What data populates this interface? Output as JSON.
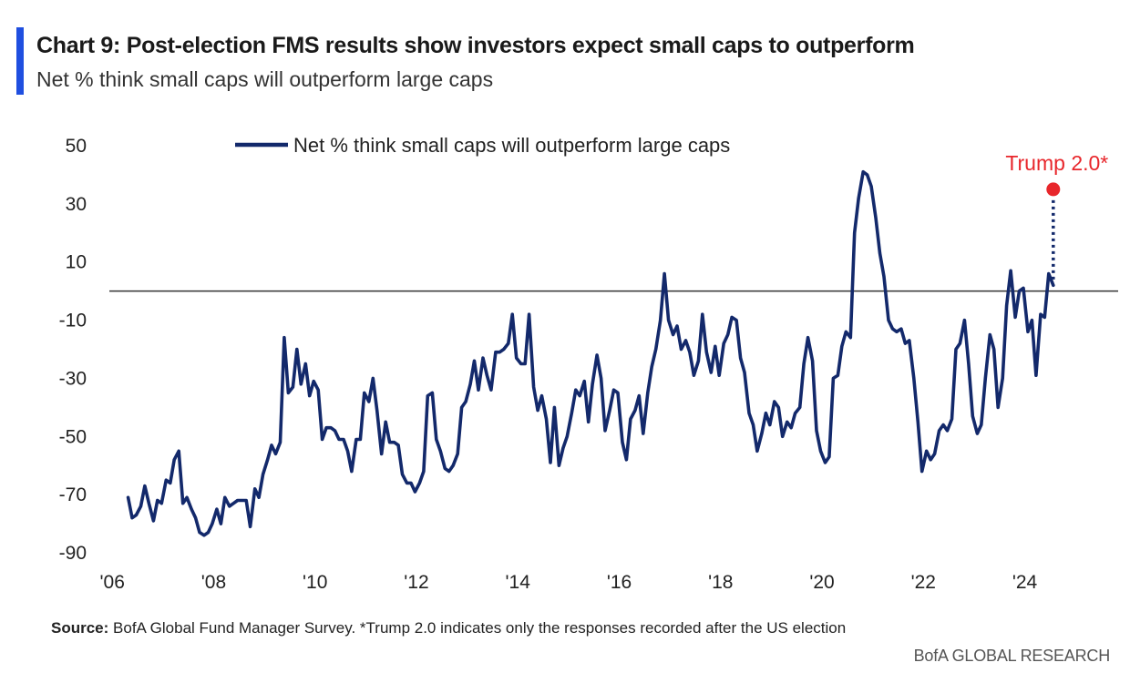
{
  "header": {
    "title": "Chart 9: Post-election FMS results show investors expect small caps to outperform",
    "subtitle": "Net % think small caps will outperform large caps"
  },
  "footer": {
    "source_label": "Source:",
    "source_text": "BofA Global Fund Manager Survey. *Trump 2.0 indicates only the responses recorded after the US election",
    "branding": "BofA GLOBAL RESEARCH"
  },
  "colors": {
    "accent": "#1f4fe0",
    "series": "#13296b",
    "annotation": "#e8262b",
    "zero_line": "#333333"
  },
  "chart_data": {
    "type": "line",
    "title": "Chart 9: Post-election FMS results show investors expect small caps to outperform",
    "subtitle": "Net % think small caps will outperform large caps",
    "xlabel": "",
    "ylabel": "",
    "xlim": [
      2006.0,
      2026.0
    ],
    "ylim": [
      -90,
      50
    ],
    "y_ticks": [
      50,
      30,
      10,
      -10,
      -30,
      -50,
      -70,
      -90
    ],
    "x_ticks": [
      2006,
      2008,
      2010,
      2012,
      2014,
      2016,
      2018,
      2020,
      2022,
      2024
    ],
    "x_tick_labels": [
      "'06",
      "'08",
      "'10",
      "'12",
      "'14",
      "'16",
      "'18",
      "'20",
      "'22",
      "'24"
    ],
    "zero_line": 0,
    "legend": {
      "position": "top-center",
      "label": "Net % think small caps will outperform large caps"
    },
    "series": [
      {
        "name": "Net % think small caps will outperform large caps",
        "points": [
          [
            2006.42,
            -71
          ],
          [
            2006.5,
            -78
          ],
          [
            2006.58,
            -77
          ],
          [
            2006.67,
            -74
          ],
          [
            2006.75,
            -67
          ],
          [
            2006.83,
            -73
          ],
          [
            2006.92,
            -79
          ],
          [
            2007.0,
            -72
          ],
          [
            2007.08,
            -73
          ],
          [
            2007.17,
            -65
          ],
          [
            2007.25,
            -66
          ],
          [
            2007.33,
            -58
          ],
          [
            2007.42,
            -55
          ],
          [
            2007.5,
            -73
          ],
          [
            2007.58,
            -71
          ],
          [
            2007.67,
            -75
          ],
          [
            2007.75,
            -78
          ],
          [
            2007.83,
            -83
          ],
          [
            2007.92,
            -84
          ],
          [
            2008.0,
            -83
          ],
          [
            2008.08,
            -80
          ],
          [
            2008.17,
            -75
          ],
          [
            2008.25,
            -80
          ],
          [
            2008.33,
            -71
          ],
          [
            2008.42,
            -74
          ],
          [
            2008.5,
            -73
          ],
          [
            2008.58,
            -72
          ],
          [
            2008.67,
            -72
          ],
          [
            2008.75,
            -72
          ],
          [
            2008.83,
            -81
          ],
          [
            2008.92,
            -68
          ],
          [
            2009.0,
            -71
          ],
          [
            2009.08,
            -63
          ],
          [
            2009.17,
            -58
          ],
          [
            2009.25,
            -53
          ],
          [
            2009.33,
            -56
          ],
          [
            2009.42,
            -52
          ],
          [
            2009.5,
            -16
          ],
          [
            2009.58,
            -35
          ],
          [
            2009.67,
            -33
          ],
          [
            2009.75,
            -20
          ],
          [
            2009.83,
            -32
          ],
          [
            2009.92,
            -25
          ],
          [
            2010.0,
            -36
          ],
          [
            2010.08,
            -31
          ],
          [
            2010.17,
            -34
          ],
          [
            2010.25,
            -51
          ],
          [
            2010.33,
            -47
          ],
          [
            2010.42,
            -47
          ],
          [
            2010.5,
            -48
          ],
          [
            2010.58,
            -51
          ],
          [
            2010.67,
            -51
          ],
          [
            2010.75,
            -55
          ],
          [
            2010.83,
            -62
          ],
          [
            2010.92,
            -51
          ],
          [
            2011.0,
            -51
          ],
          [
            2011.08,
            -35
          ],
          [
            2011.17,
            -38
          ],
          [
            2011.25,
            -30
          ],
          [
            2011.33,
            -41
          ],
          [
            2011.42,
            -56
          ],
          [
            2011.5,
            -45
          ],
          [
            2011.58,
            -52
          ],
          [
            2011.67,
            -52
          ],
          [
            2011.75,
            -53
          ],
          [
            2011.83,
            -63
          ],
          [
            2011.92,
            -66
          ],
          [
            2012.0,
            -66
          ],
          [
            2012.08,
            -69
          ],
          [
            2012.17,
            -66
          ],
          [
            2012.25,
            -62
          ],
          [
            2012.33,
            -36
          ],
          [
            2012.42,
            -35
          ],
          [
            2012.5,
            -51
          ],
          [
            2012.58,
            -55
          ],
          [
            2012.67,
            -61
          ],
          [
            2012.75,
            -62
          ],
          [
            2012.83,
            -60
          ],
          [
            2012.92,
            -56
          ],
          [
            2013.0,
            -40
          ],
          [
            2013.08,
            -38
          ],
          [
            2013.17,
            -32
          ],
          [
            2013.25,
            -24
          ],
          [
            2013.33,
            -34
          ],
          [
            2013.42,
            -23
          ],
          [
            2013.5,
            -29
          ],
          [
            2013.58,
            -34
          ],
          [
            2013.67,
            -21
          ],
          [
            2013.75,
            -21
          ],
          [
            2013.83,
            -20
          ],
          [
            2013.92,
            -18
          ],
          [
            2014.0,
            -8
          ],
          [
            2014.08,
            -23
          ],
          [
            2014.17,
            -25
          ],
          [
            2014.25,
            -25
          ],
          [
            2014.33,
            -8
          ],
          [
            2014.42,
            -33
          ],
          [
            2014.5,
            -41
          ],
          [
            2014.58,
            -36
          ],
          [
            2014.67,
            -44
          ],
          [
            2014.75,
            -59
          ],
          [
            2014.83,
            -40
          ],
          [
            2014.92,
            -60
          ],
          [
            2015.0,
            -54
          ],
          [
            2015.08,
            -50
          ],
          [
            2015.17,
            -42
          ],
          [
            2015.25,
            -34
          ],
          [
            2015.33,
            -36
          ],
          [
            2015.42,
            -31
          ],
          [
            2015.5,
            -45
          ],
          [
            2015.58,
            -32
          ],
          [
            2015.67,
            -22
          ],
          [
            2015.75,
            -30
          ],
          [
            2015.83,
            -48
          ],
          [
            2015.92,
            -41
          ],
          [
            2016.0,
            -34
          ],
          [
            2016.08,
            -35
          ],
          [
            2016.17,
            -52
          ],
          [
            2016.25,
            -58
          ],
          [
            2016.33,
            -44
          ],
          [
            2016.42,
            -41
          ],
          [
            2016.5,
            -36
          ],
          [
            2016.58,
            -49
          ],
          [
            2016.67,
            -35
          ],
          [
            2016.75,
            -26
          ],
          [
            2016.83,
            -20
          ],
          [
            2016.92,
            -10
          ],
          [
            2017.0,
            6
          ],
          [
            2017.08,
            -10
          ],
          [
            2017.17,
            -15
          ],
          [
            2017.25,
            -12
          ],
          [
            2017.33,
            -20
          ],
          [
            2017.42,
            -17
          ],
          [
            2017.5,
            -21
          ],
          [
            2017.58,
            -29
          ],
          [
            2017.67,
            -24
          ],
          [
            2017.75,
            -8
          ],
          [
            2017.83,
            -21
          ],
          [
            2017.92,
            -28
          ],
          [
            2018.0,
            -19
          ],
          [
            2018.08,
            -29
          ],
          [
            2018.17,
            -18
          ],
          [
            2018.25,
            -15
          ],
          [
            2018.33,
            -9
          ],
          [
            2018.42,
            -10
          ],
          [
            2018.5,
            -23
          ],
          [
            2018.58,
            -28
          ],
          [
            2018.67,
            -42
          ],
          [
            2018.75,
            -46
          ],
          [
            2018.83,
            -55
          ],
          [
            2018.92,
            -49
          ],
          [
            2019.0,
            -42
          ],
          [
            2019.08,
            -46
          ],
          [
            2019.17,
            -38
          ],
          [
            2019.25,
            -40
          ],
          [
            2019.33,
            -50
          ],
          [
            2019.42,
            -45
          ],
          [
            2019.5,
            -47
          ],
          [
            2019.58,
            -42
          ],
          [
            2019.67,
            -40
          ],
          [
            2019.75,
            -25
          ],
          [
            2019.83,
            -16
          ],
          [
            2019.92,
            -24
          ],
          [
            2020.0,
            -48
          ],
          [
            2020.08,
            -55
          ],
          [
            2020.17,
            -59
          ],
          [
            2020.25,
            -57
          ],
          [
            2020.33,
            -30
          ],
          [
            2020.42,
            -29
          ],
          [
            2020.5,
            -19
          ],
          [
            2020.58,
            -14
          ],
          [
            2020.67,
            -16
          ],
          [
            2020.75,
            20
          ],
          [
            2020.83,
            32
          ],
          [
            2020.92,
            41
          ],
          [
            2021.0,
            40
          ],
          [
            2021.08,
            36
          ],
          [
            2021.17,
            25
          ],
          [
            2021.25,
            13
          ],
          [
            2021.33,
            5
          ],
          [
            2021.42,
            -10
          ],
          [
            2021.5,
            -13
          ],
          [
            2021.58,
            -14
          ],
          [
            2021.67,
            -13
          ],
          [
            2021.75,
            -18
          ],
          [
            2021.83,
            -17
          ],
          [
            2021.92,
            -30
          ],
          [
            2022.0,
            -45
          ],
          [
            2022.08,
            -62
          ],
          [
            2022.17,
            -55
          ],
          [
            2022.25,
            -58
          ],
          [
            2022.33,
            -56
          ],
          [
            2022.42,
            -48
          ],
          [
            2022.5,
            -46
          ],
          [
            2022.58,
            -48
          ],
          [
            2022.67,
            -44
          ],
          [
            2022.75,
            -20
          ],
          [
            2022.83,
            -18
          ],
          [
            2022.92,
            -10
          ],
          [
            2023.0,
            -25
          ],
          [
            2023.08,
            -43
          ],
          [
            2023.17,
            -49
          ],
          [
            2023.25,
            -46
          ],
          [
            2023.33,
            -30
          ],
          [
            2023.42,
            -15
          ],
          [
            2023.5,
            -20
          ],
          [
            2023.58,
            -40
          ],
          [
            2023.67,
            -30
          ],
          [
            2023.75,
            -5
          ],
          [
            2023.83,
            7
          ],
          [
            2023.92,
            -9
          ],
          [
            2024.0,
            0
          ],
          [
            2024.08,
            1
          ],
          [
            2024.17,
            -14
          ],
          [
            2024.25,
            -10
          ],
          [
            2024.33,
            -29
          ],
          [
            2024.42,
            -8
          ],
          [
            2024.5,
            -9
          ],
          [
            2024.58,
            6
          ],
          [
            2024.67,
            2
          ]
        ]
      }
    ],
    "annotation": {
      "label": "Trump 2.0*",
      "point": [
        2024.67,
        35
      ],
      "connector_from": [
        2024.67,
        4
      ]
    }
  }
}
